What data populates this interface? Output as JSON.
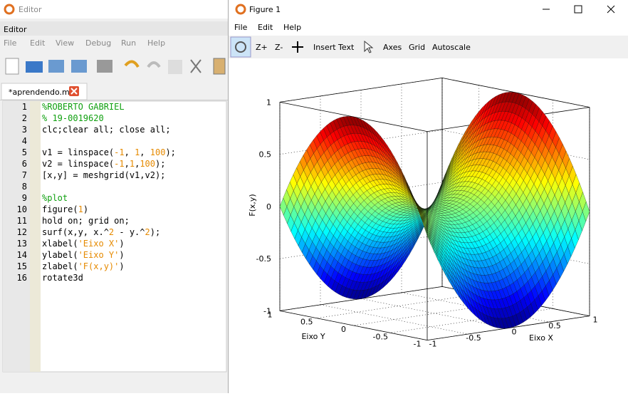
{
  "editor": {
    "title": "Editor",
    "panel_label": "Editor",
    "menu": [
      "File",
      "Edit",
      "View",
      "Debug",
      "Run",
      "Help"
    ],
    "tab": "*aprendendo.m",
    "lines": [
      {
        "n": "1",
        "segments": [
          [
            "%ROBERTO GABRIEL",
            "#10a010"
          ]
        ]
      },
      {
        "n": "2",
        "segments": [
          [
            "% 19-0019620",
            "#10a010"
          ]
        ]
      },
      {
        "n": "3",
        "segments": [
          [
            "clc;clear all; close all;",
            "#000000"
          ]
        ]
      },
      {
        "n": "4",
        "segments": []
      },
      {
        "n": "5",
        "segments": [
          [
            "v1 = linspace(",
            "#000000"
          ],
          [
            "-1",
            "#e68a00"
          ],
          [
            ", ",
            "#000000"
          ],
          [
            "1",
            "#e68a00"
          ],
          [
            ", ",
            "#000000"
          ],
          [
            "100",
            "#e68a00"
          ],
          [
            ");",
            "#000000"
          ]
        ]
      },
      {
        "n": "6",
        "segments": [
          [
            "v2 = linspace(",
            "#000000"
          ],
          [
            "-1",
            "#e68a00"
          ],
          [
            ",",
            "#000000"
          ],
          [
            "1",
            "#e68a00"
          ],
          [
            ",",
            "#000000"
          ],
          [
            "100",
            "#e68a00"
          ],
          [
            ");",
            "#000000"
          ]
        ]
      },
      {
        "n": "7",
        "segments": [
          [
            "[x,y] = meshgrid(v1,v2);",
            "#000000"
          ]
        ]
      },
      {
        "n": "8",
        "segments": []
      },
      {
        "n": "9",
        "segments": [
          [
            "%plot",
            "#10a010"
          ]
        ]
      },
      {
        "n": "10",
        "segments": [
          [
            "figure(",
            "#000000"
          ],
          [
            "1",
            "#e68a00"
          ],
          [
            ")",
            "#000000"
          ]
        ]
      },
      {
        "n": "11",
        "segments": [
          [
            "hold on; grid on;",
            "#000000"
          ]
        ]
      },
      {
        "n": "12",
        "segments": [
          [
            "surf(x,y, x.^",
            "#000000"
          ],
          [
            "2",
            "#e68a00"
          ],
          [
            " - y.^",
            "#000000"
          ],
          [
            "2",
            "#e68a00"
          ],
          [
            ");",
            "#000000"
          ]
        ]
      },
      {
        "n": "13",
        "segments": [
          [
            "xlabel(",
            "#000000"
          ],
          [
            "'Eixo X'",
            "#e68a00"
          ],
          [
            ")",
            "#000000"
          ]
        ]
      },
      {
        "n": "14",
        "segments": [
          [
            "ylabel(",
            "#000000"
          ],
          [
            "'Eixo Y'",
            "#e68a00"
          ],
          [
            ")",
            "#000000"
          ]
        ]
      },
      {
        "n": "15",
        "segments": [
          [
            "zlabel(",
            "#000000"
          ],
          [
            "'F(x,y)'",
            "#e68a00"
          ],
          [
            ")",
            "#000000"
          ]
        ]
      },
      {
        "n": "16",
        "segments": [
          [
            "rotate3d",
            "#000000"
          ]
        ]
      }
    ]
  },
  "figure": {
    "title": "Figure 1",
    "menu": [
      "File",
      "Edit",
      "Help"
    ],
    "toolbar": [
      "Z+",
      "Z-",
      "Insert Text",
      "Axes",
      "Grid",
      "Autoscale"
    ],
    "plot": {
      "xlabel": "Eixo X",
      "ylabel": "Eixo Y",
      "zlabel": "F(x,y)",
      "xticks": [
        -1,
        -0.5,
        0,
        0.5,
        1
      ],
      "yticks": [
        -1,
        -0.5,
        0,
        0.5,
        1
      ],
      "zticks": [
        -1,
        -0.5,
        0,
        0.5,
        1
      ]
    }
  }
}
